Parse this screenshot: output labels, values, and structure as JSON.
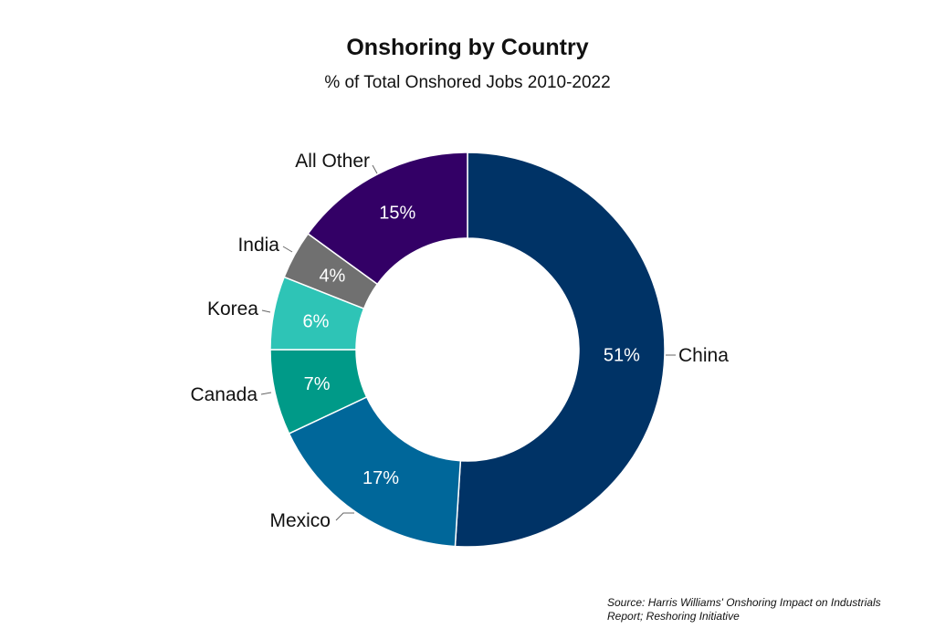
{
  "chart_data": {
    "type": "pie",
    "variant": "donut",
    "title": "Onshoring by Country",
    "subtitle": "% of Total Onshored Jobs 2010-2022",
    "slices": [
      {
        "name": "China",
        "value": 51,
        "label": "51%",
        "color": "#003366"
      },
      {
        "name": "Mexico",
        "value": 17,
        "label": "17%",
        "color": "#00679a"
      },
      {
        "name": "Canada",
        "value": 7,
        "label": "7%",
        "color": "#009a88"
      },
      {
        "name": "Korea",
        "value": 6,
        "label": "6%",
        "color": "#2ec4b6"
      },
      {
        "name": "India",
        "value": 4,
        "label": "4%",
        "color": "#707070"
      },
      {
        "name": "All Other",
        "value": 15,
        "label": "15%",
        "color": "#330066"
      }
    ]
  },
  "source": "Source: Harris Williams' Onshoring Impact on Industrials Report; Reshoring Initiative"
}
